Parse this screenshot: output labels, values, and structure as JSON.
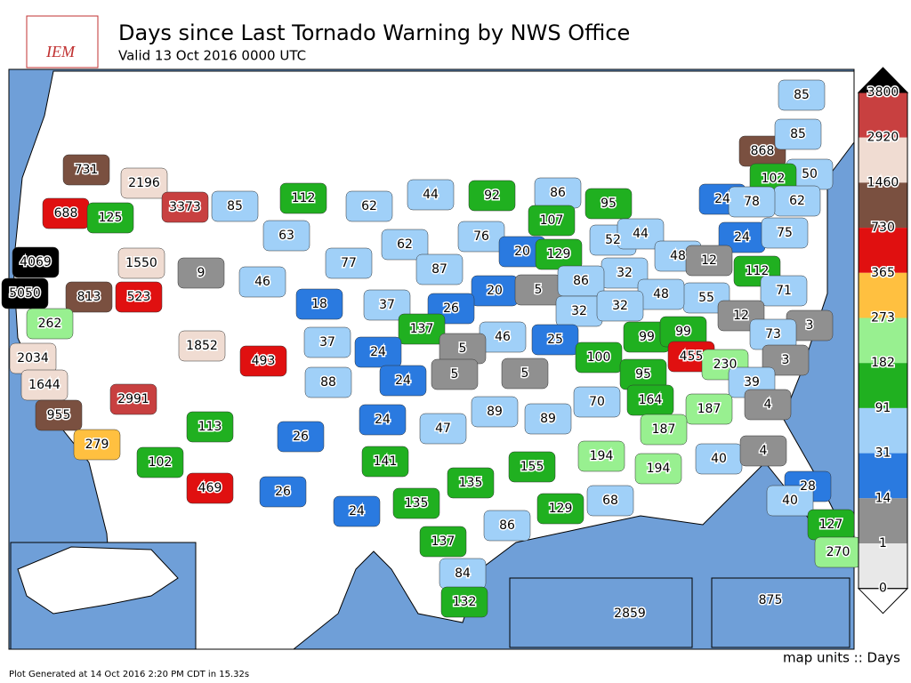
{
  "title": "Days since Last Tornado Warning by NWS Office",
  "subtitle": "Valid 13 Oct 2016 0000 UTC",
  "logo": "IEM",
  "units": "map units :: Days",
  "footer": "Plot Generated at 14 Oct 2016 2:20 PM CDT in 15.32s",
  "legend": {
    "ticks": [
      3800,
      2920,
      1460,
      730,
      365,
      273,
      182,
      91,
      31,
      14,
      1,
      0
    ],
    "colors": [
      "#c84040",
      "#f0dcd2",
      "#7a5040",
      "#e01010",
      "#ffc040",
      "#98f090",
      "#20b020",
      "#a0d0f8",
      "#2a7ae0",
      "#909090",
      "#e8e8e8"
    ],
    "over_color": "#000000",
    "under_color": "#ffffff"
  },
  "map_values": [
    731,
    2196,
    688,
    125,
    3373,
    85,
    112,
    62,
    44,
    92,
    86,
    868,
    85,
    85,
    50,
    102,
    62,
    24,
    78,
    95,
    107,
    76,
    62,
    63,
    1550,
    9,
    4069,
    46,
    77,
    87,
    20,
    129,
    52,
    44,
    24,
    75,
    48,
    12,
    32,
    20,
    5,
    86,
    112,
    5050,
    813,
    523,
    18,
    37,
    26,
    55,
    71,
    48,
    32,
    32,
    262,
    1852,
    137,
    12,
    3,
    73,
    46,
    25,
    99,
    99,
    493,
    37,
    24,
    5,
    5,
    100,
    455,
    230,
    3,
    2034,
    1644,
    88,
    24,
    5,
    95,
    39,
    70,
    164,
    187,
    4,
    955,
    2991,
    113,
    24,
    26,
    47,
    89,
    89,
    187,
    279,
    102,
    469,
    141,
    135,
    155,
    194,
    194,
    40,
    4,
    26,
    24,
    135,
    129,
    68,
    28,
    40,
    127,
    270,
    137,
    86,
    84,
    132,
    2859,
    875
  ]
}
